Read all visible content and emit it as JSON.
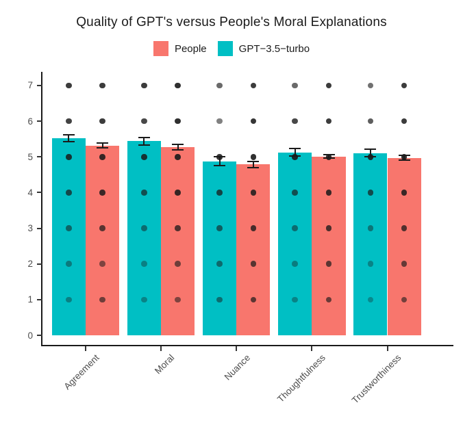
{
  "chart_data": {
    "type": "bar",
    "title": "Quality of GPT's versus People's Moral Explanations",
    "xlabel": "",
    "ylabel": "",
    "ylim": [
      0,
      7
    ],
    "yticks": [
      0,
      1,
      2,
      3,
      4,
      5,
      6,
      7
    ],
    "grid": "off",
    "legend": {
      "position": "top-center",
      "entries": [
        {
          "label": "People",
          "color": "#F8766D"
        },
        {
          "label": "GPT−3.5−turbo",
          "color": "#00BFC4"
        }
      ]
    },
    "categories": [
      "Agreement",
      "Moral",
      "Nuance",
      "Thoughtfulness",
      "Trustworthiness"
    ],
    "series": [
      {
        "name": "GPT−3.5−turbo",
        "color": "#00BFC4",
        "values": [
          5.52,
          5.44,
          4.88,
          5.13,
          5.11
        ],
        "errors": [
          0.1,
          0.1,
          0.12,
          0.11,
          0.11
        ]
      },
      {
        "name": "People",
        "color": "#F8766D",
        "values": [
          5.32,
          5.28,
          4.79,
          5.01,
          4.97
        ],
        "errors": [
          0.07,
          0.08,
          0.09,
          0.05,
          0.07
        ]
      }
    ],
    "points_overlay": {
      "description": "semi-transparent rating dots at integer scale values 1-7 over each bar column",
      "values": [
        1,
        2,
        3,
        4,
        5,
        6,
        7
      ],
      "color": "#1a1a1a",
      "columns": [
        {
          "series": "GPT−3.5−turbo",
          "category": "Agreement",
          "opacity": [
            0.38,
            0.42,
            0.55,
            0.72,
            0.85,
            0.82,
            0.85
          ]
        },
        {
          "series": "People",
          "category": "Agreement",
          "opacity": [
            0.62,
            0.55,
            0.72,
            0.85,
            0.88,
            0.85,
            0.85
          ]
        },
        {
          "series": "GPT−3.5−turbo",
          "category": "Moral",
          "opacity": [
            0.36,
            0.38,
            0.5,
            0.68,
            0.85,
            0.8,
            0.85
          ]
        },
        {
          "series": "People",
          "category": "Moral",
          "opacity": [
            0.55,
            0.62,
            0.75,
            0.88,
            0.9,
            0.9,
            0.9
          ]
        },
        {
          "series": "GPT−3.5−turbo",
          "category": "Nuance",
          "opacity": [
            0.5,
            0.52,
            0.6,
            0.75,
            0.88,
            0.55,
            0.65
          ]
        },
        {
          "series": "People",
          "category": "Nuance",
          "opacity": [
            0.7,
            0.72,
            0.8,
            0.85,
            0.9,
            0.88,
            0.85
          ]
        },
        {
          "series": "GPT−3.5−turbo",
          "category": "Thoughtfulness",
          "opacity": [
            0.36,
            0.4,
            0.5,
            0.68,
            0.9,
            0.8,
            0.65
          ]
        },
        {
          "series": "People",
          "category": "Thoughtfulness",
          "opacity": [
            0.65,
            0.7,
            0.78,
            0.85,
            0.9,
            0.85,
            0.85
          ]
        },
        {
          "series": "GPT−3.5−turbo",
          "category": "Trustworthiness",
          "opacity": [
            0.32,
            0.36,
            0.45,
            0.7,
            0.92,
            0.7,
            0.62
          ]
        },
        {
          "series": "People",
          "category": "Trustworthiness",
          "opacity": [
            0.6,
            0.66,
            0.75,
            0.85,
            0.9,
            0.85,
            0.85
          ]
        }
      ]
    },
    "colors": {
      "people": "#F8766D",
      "gpt": "#00BFC4",
      "axis": "#1a1a1a",
      "axis_text": "#4d4d4d",
      "points": "#1a1a1a"
    }
  }
}
